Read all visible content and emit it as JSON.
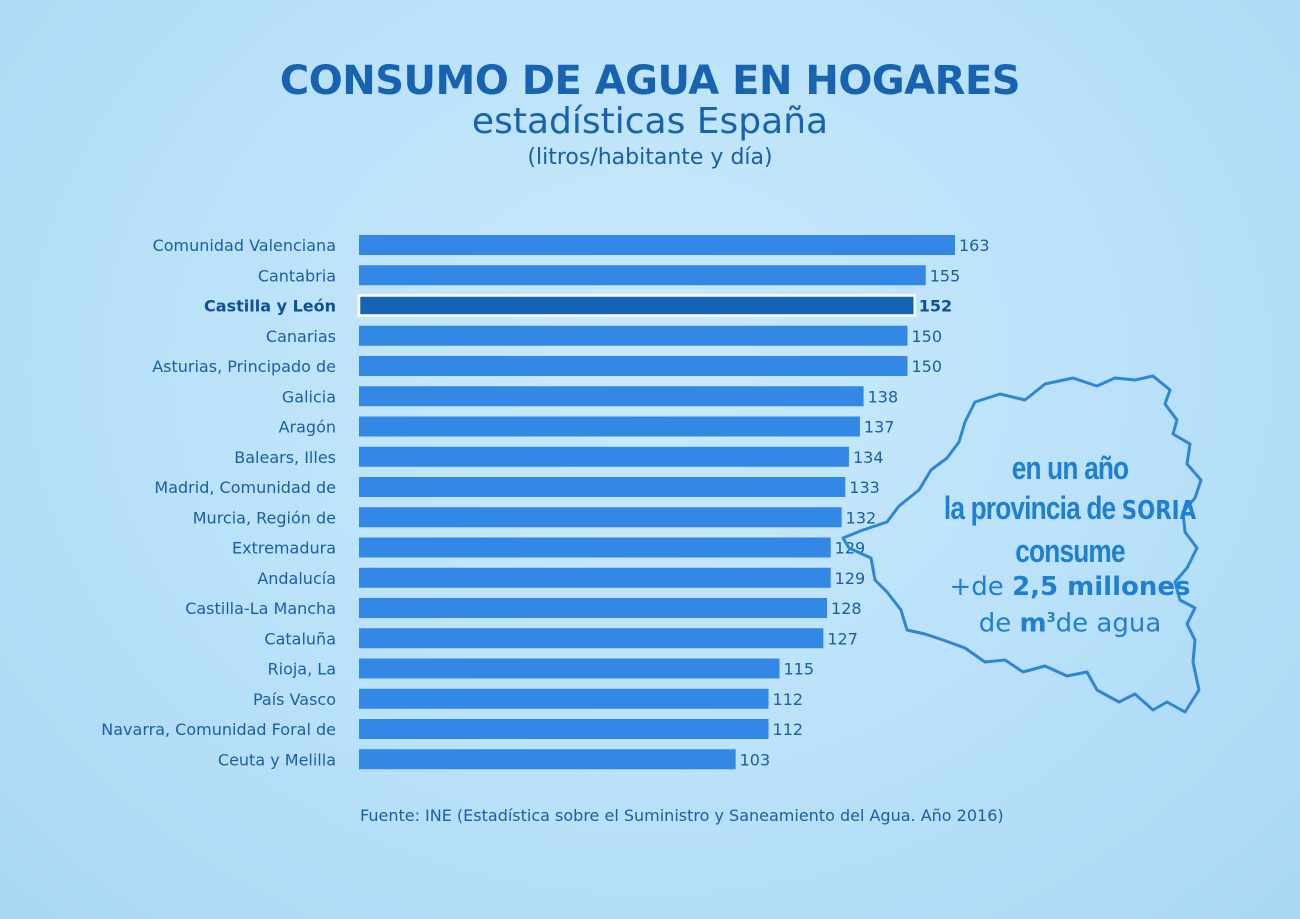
{
  "title": "CONSUMO DE AGUA EN HOGARES",
  "subtitle": "estadísticas España",
  "units": "(litros/habitante y día)",
  "source": "Fuente: INE (Estadística sobre el Suministro y Saneamiento del Agua. Año 2016)",
  "callout": {
    "line1": "en un año",
    "line2_pre": "la provincia de ",
    "line2_bold": "SORIA",
    "line3": "consume",
    "line4_pre": "+de ",
    "line4_bold": "2,5 millones",
    "line5_pre": "de ",
    "line5_bold": "m",
    "line5_sup": "3",
    "line5_post": "de agua"
  },
  "colors": {
    "bar": "#3288e4",
    "bar_highlight": "#1565b4",
    "text": "#1a5fa6",
    "background": "#bfe4fa"
  },
  "chart_data": {
    "type": "bar",
    "orientation": "horizontal",
    "highlight": "Castilla y León",
    "categories": [
      "Comunidad Valenciana",
      "Cantabria",
      "Castilla y León",
      "Canarias",
      "Asturias, Principado de",
      "Galicia",
      "Aragón",
      "Balears, Illes",
      "Madrid, Comunidad de",
      "Murcia, Región de",
      "Extremadura",
      "Andalucía",
      "Castilla-La Mancha",
      "Cataluña",
      "Rioja, La",
      "País Vasco",
      "Navarra, Comunidad Foral de",
      "Ceuta y Melilla"
    ],
    "values": [
      163,
      155,
      152,
      150,
      150,
      138,
      137,
      134,
      133,
      132,
      129,
      129,
      128,
      127,
      115,
      112,
      112,
      103
    ],
    "xlim": [
      0,
      163
    ],
    "grid": false,
    "legend": "none"
  }
}
